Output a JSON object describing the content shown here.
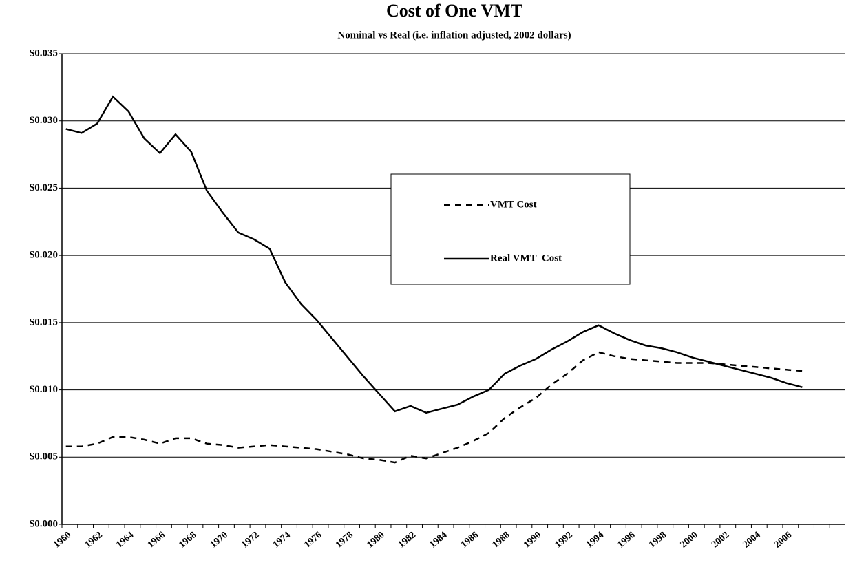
{
  "chart_data": {
    "type": "line",
    "title": "Cost of One VMT",
    "subtitle": "Nominal vs Real (i.e. inflation adjusted, 2002 dollars)",
    "categories": [
      "1960",
      null,
      "1962",
      null,
      "1964",
      null,
      "1966",
      null,
      "1968",
      null,
      "1970",
      null,
      "1972",
      null,
      "1974",
      null,
      "1976",
      null,
      "1978",
      null,
      "1980",
      null,
      "1982",
      null,
      "1984",
      null,
      "1986",
      null,
      "1988",
      null,
      "1990",
      null,
      "1992",
      null,
      "1994",
      null,
      "1996",
      null,
      "1998",
      null,
      "2000",
      null,
      "2002",
      null,
      "2004",
      null,
      "2006",
      null,
      null,
      null
    ],
    "series": [
      {
        "name": "VMT Cost",
        "color": "#000000",
        "dash": true,
        "values": [
          0.0058,
          0.0058,
          0.006,
          0.0065,
          0.0065,
          0.0063,
          0.006,
          0.0064,
          0.0064,
          0.006,
          0.0059,
          0.0057,
          0.0058,
          0.0059,
          0.0058,
          0.0057,
          0.0056,
          0.0054,
          0.0052,
          0.0049,
          0.0048,
          0.0046,
          0.0051,
          0.0049,
          0.0053,
          0.0057,
          0.0062,
          0.0068,
          0.0079,
          0.0087,
          0.0094,
          0.0104,
          0.0112,
          0.0122,
          0.0128,
          0.0125,
          0.0123,
          0.0122,
          0.0121,
          0.012,
          0.012,
          0.012,
          0.0119,
          0.0118,
          0.0117,
          0.0116,
          0.0115,
          0.0114,
          null,
          null
        ]
      },
      {
        "name": "Real VMT  Cost",
        "color": "#000000",
        "dash": false,
        "values": [
          0.0294,
          0.0291,
          0.0298,
          0.0318,
          0.0307,
          0.0287,
          0.0276,
          0.029,
          0.0277,
          0.0248,
          0.0232,
          0.0217,
          0.0212,
          0.0205,
          0.018,
          0.0164,
          0.0152,
          0.0138,
          0.0124,
          0.011,
          0.0097,
          0.0084,
          0.0088,
          0.0083,
          0.0086,
          0.0089,
          0.0095,
          0.01,
          0.0112,
          0.0118,
          0.0123,
          0.013,
          0.0136,
          0.0143,
          0.0148,
          0.0142,
          0.0137,
          0.0133,
          0.0131,
          0.0128,
          0.0124,
          0.0121,
          0.0118,
          0.0115,
          0.0112,
          0.0109,
          0.0105,
          0.0102,
          null,
          null
        ]
      }
    ],
    "ylim": [
      0,
      0.035
    ],
    "yticks": [
      {
        "value": 0,
        "label": "$0.000"
      },
      {
        "value": 0.005,
        "label": "$0.005"
      },
      {
        "value": 0.01,
        "label": "$0.010"
      },
      {
        "value": 0.015,
        "label": "$0.015"
      },
      {
        "value": 0.02,
        "label": "$0.020"
      },
      {
        "value": 0.025,
        "label": "$0.025"
      },
      {
        "value": 0.03,
        "label": "$0.030"
      },
      {
        "value": 0.035,
        "label": "$0.035"
      }
    ],
    "grid": true
  }
}
